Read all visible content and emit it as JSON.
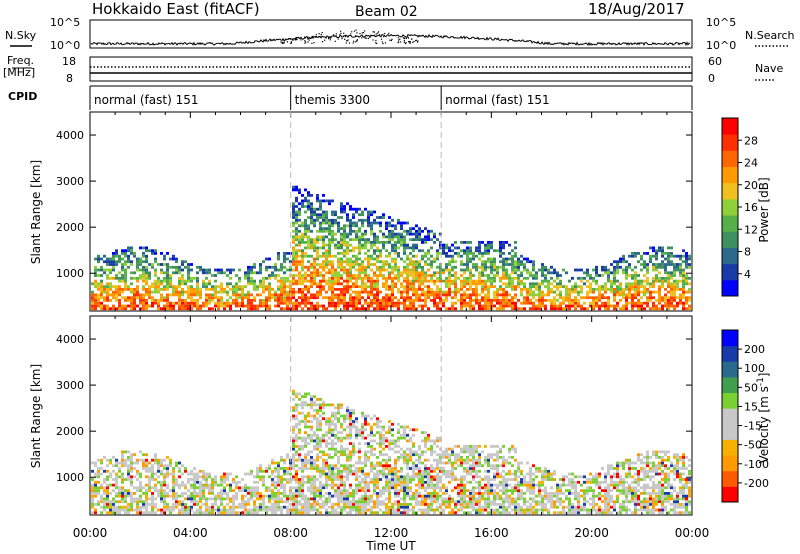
{
  "header": {
    "title": "Hokkaido East (fitACF)",
    "beam": "Beam 02",
    "date": "18/Aug/2017"
  },
  "top_strips": {
    "nsky_label": "N.Sky",
    "nsearch_label": "N.Search",
    "noise_ticks_left": [
      "10^5",
      "10^0"
    ],
    "noise_ticks_right": [
      "10^5",
      "10^0"
    ],
    "freq_label": "Freq.",
    "freq_unit": "[MHz]",
    "freq_ticks": [
      "18",
      "8"
    ],
    "nave_label": "Nave",
    "nave_ticks": [
      "60",
      "0"
    ],
    "cpid_label": "CPID"
  },
  "cpid_segments": [
    {
      "label": "normal (fast) 151",
      "start_h": 0,
      "end_h": 8
    },
    {
      "label": "themis 3300",
      "start_h": 8,
      "end_h": 14
    },
    {
      "label": "normal (fast) 151",
      "start_h": 14,
      "end_h": 24
    }
  ],
  "colors": {
    "power": [
      "#0000ff",
      "#1a3aa8",
      "#2c6a8c",
      "#3f8f5f",
      "#55b04a",
      "#8ecf3a",
      "#f0c020",
      "#ff9a00",
      "#ff6600",
      "#ff3000",
      "#ff0000"
    ],
    "velocity": [
      "#ff0000",
      "#ff5a00",
      "#ff9a00",
      "#f5b000",
      "#c8c8c8",
      "#c8c8c8",
      "#7ad030",
      "#3f9f4f",
      "#2a6a8c",
      "#1a3aa8",
      "#0000ff"
    ]
  },
  "chart_data": [
    {
      "type": "heatmap",
      "name": "power",
      "xlim_h": [
        0,
        24
      ],
      "ylim": [
        180,
        4500
      ],
      "xlabel": "",
      "ylabel": "Slant Range [km]",
      "yticks": [
        1000,
        2000,
        3000,
        4000
      ],
      "colorbar": {
        "label": "Power [dB]",
        "ticks": [
          "28",
          "24",
          "20",
          "16",
          "12",
          "8",
          "4"
        ]
      }
    },
    {
      "type": "heatmap",
      "name": "velocity",
      "xlim_h": [
        0,
        24
      ],
      "ylim": [
        180,
        4500
      ],
      "xlabel": "Time UT",
      "ylabel": "Slant Range [km]",
      "yticks": [
        1000,
        2000,
        3000,
        4000
      ],
      "xticks": [
        "00:00",
        "04:00",
        "08:00",
        "12:00",
        "16:00",
        "20:00",
        "00:00"
      ],
      "colorbar": {
        "label": "Velocity [m s^-1]",
        "ticks": [
          "200",
          "100",
          "50",
          "15",
          "-15",
          "-50",
          "-100",
          "-200"
        ]
      }
    }
  ]
}
